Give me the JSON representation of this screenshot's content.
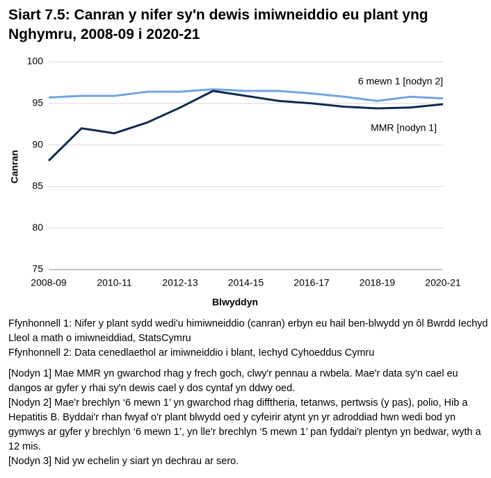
{
  "chart_data": {
    "type": "line",
    "title": "Siart 7.5: Canran y nifer sy'n dewis imiwneiddio eu plant yng Nghymru, 2008-09 i 2020-21",
    "x_label": "Blwyddyn",
    "y_label": "Canran",
    "categories": [
      "2008-09",
      null,
      "2010-11",
      null,
      "2012-13",
      null,
      "2014-15",
      null,
      "2016-17",
      null,
      "2018-19",
      null,
      "2020-21"
    ],
    "series": [
      {
        "name": "6 mewn 1 [nodyn 2]",
        "color": "#6ea6e6",
        "values": [
          95.7,
          95.9,
          95.9,
          96.4,
          96.4,
          96.7,
          96.5,
          96.5,
          96.2,
          95.8,
          95.3,
          95.8,
          95.6
        ]
      },
      {
        "name": "MMR [nodyn 1]",
        "color": "#0e2a52",
        "values": [
          88.1,
          92.0,
          91.4,
          92.7,
          94.5,
          96.5,
          95.9,
          95.3,
          95.0,
          94.6,
          94.4,
          94.5,
          94.9
        ]
      }
    ],
    "ylim": [
      75,
      100
    ],
    "yticks": [
      75,
      80,
      85,
      90,
      95,
      100
    ],
    "grid": true
  },
  "notes": {
    "sources": [
      "Ffynhonnell 1: Nifer y plant sydd wedi'u himiwneiddio (canran) erbyn eu hail ben-blwydd yn ôl Bwrdd Iechyd Lleol a math o imiwneiddiad, StatsCymru",
      "Ffynhonnell 2: Data cenedlaethol ar imiwneiddio i blant, Iechyd Cyhoeddus Cymru"
    ],
    "footnotes": [
      "[Nodyn 1] Mae MMR yn gwarchod rhag y frech goch, clwy'r pennau a rwbela. Mae'r data sy'n cael eu dangos ar gyfer y rhai sy'n dewis cael y dos cyntaf yn ddwy oed.",
      "[Nodyn 2] Mae'r brechlyn ‘6 mewn 1’ yn gwarchod rhag difftheria, tetanws, pertwsis (y pas), polio, Hib a Hepatitis B. Byddai'r rhan fwyaf o'r plant blwydd oed y cyfeirir atynt yn yr adroddiad hwn wedi bod yn gymwys ar gyfer y brechlyn ‘6 mewn 1’, yn lle'r brechlyn ‘5 mewn 1’ pan fyddai'r plentyn yn bedwar, wyth a 12 mis.",
      "[Nodyn 3] Nid yw echelin y siart yn dechrau ar sero."
    ]
  }
}
